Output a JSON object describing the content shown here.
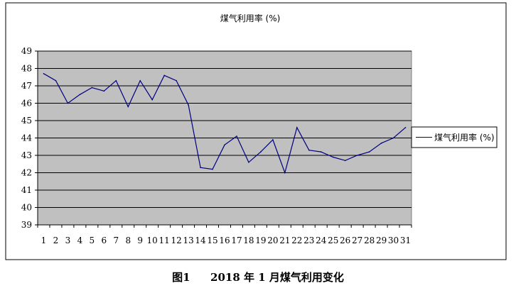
{
  "chart_data": {
    "type": "line",
    "title": "煤气利用率 (%)",
    "xlabel": "",
    "ylabel": "",
    "x": [
      1,
      2,
      3,
      4,
      5,
      6,
      7,
      8,
      9,
      10,
      11,
      12,
      13,
      14,
      15,
      16,
      17,
      18,
      19,
      20,
      21,
      22,
      23,
      24,
      25,
      26,
      27,
      28,
      29,
      30,
      31
    ],
    "series": [
      {
        "name": "煤气利用率 (%)",
        "values": [
          47.7,
          47.3,
          46.0,
          46.5,
          46.9,
          46.7,
          47.3,
          45.8,
          47.3,
          46.2,
          47.6,
          47.3,
          45.9,
          42.3,
          42.2,
          43.6,
          44.1,
          42.6,
          43.2,
          43.9,
          42.0,
          44.6,
          43.3,
          43.2,
          42.9,
          42.7,
          43.0,
          43.2,
          43.7,
          44.0,
          44.6
        ]
      }
    ],
    "ylim": [
      39,
      49
    ],
    "yticks": [
      39,
      40,
      41,
      42,
      43,
      44,
      45,
      46,
      47,
      48,
      49
    ],
    "grid": true,
    "legend": "right",
    "colors": {
      "line": "#000080",
      "plot_bg": "#c0c0c0",
      "grid": "#000000"
    }
  },
  "caption": {
    "fig": "图1",
    "text": "2018 年 1 月煤气利用变化"
  }
}
